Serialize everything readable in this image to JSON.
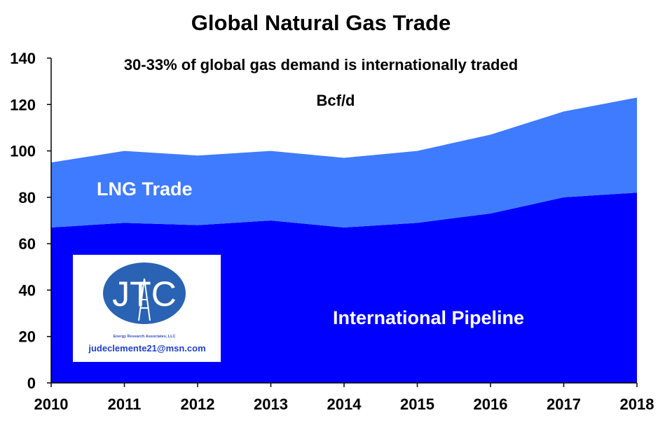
{
  "chart_data": {
    "type": "area",
    "stacked": true,
    "title": "Global Natural Gas Trade",
    "subtitle": "30-33% of global gas demand is internationally traded",
    "unit_label": "Bcf/d",
    "categories": [
      "2010",
      "2011",
      "2012",
      "2013",
      "2014",
      "2015",
      "2016",
      "2017",
      "2018"
    ],
    "series": [
      {
        "name": "International Pipeline",
        "values": [
          67,
          69,
          68,
          70,
          67,
          69,
          73,
          80,
          82
        ],
        "color": "#0000ff"
      },
      {
        "name": "LNG Trade",
        "values": [
          28,
          31,
          30,
          30,
          30,
          31,
          34,
          37,
          41
        ],
        "color": "#3f7bff"
      }
    ],
    "ylim": [
      0,
      140
    ],
    "yticks": [
      "0",
      "20",
      "40",
      "60",
      "80",
      "100",
      "120",
      "140"
    ],
    "grid": false,
    "legend": "labels inside areas"
  },
  "logo": {
    "letters": "JTC",
    "tagline": "Energy Research Associates, LLC",
    "email": "judeclemente21@msn.com",
    "circle_color": "#2a63b3"
  }
}
